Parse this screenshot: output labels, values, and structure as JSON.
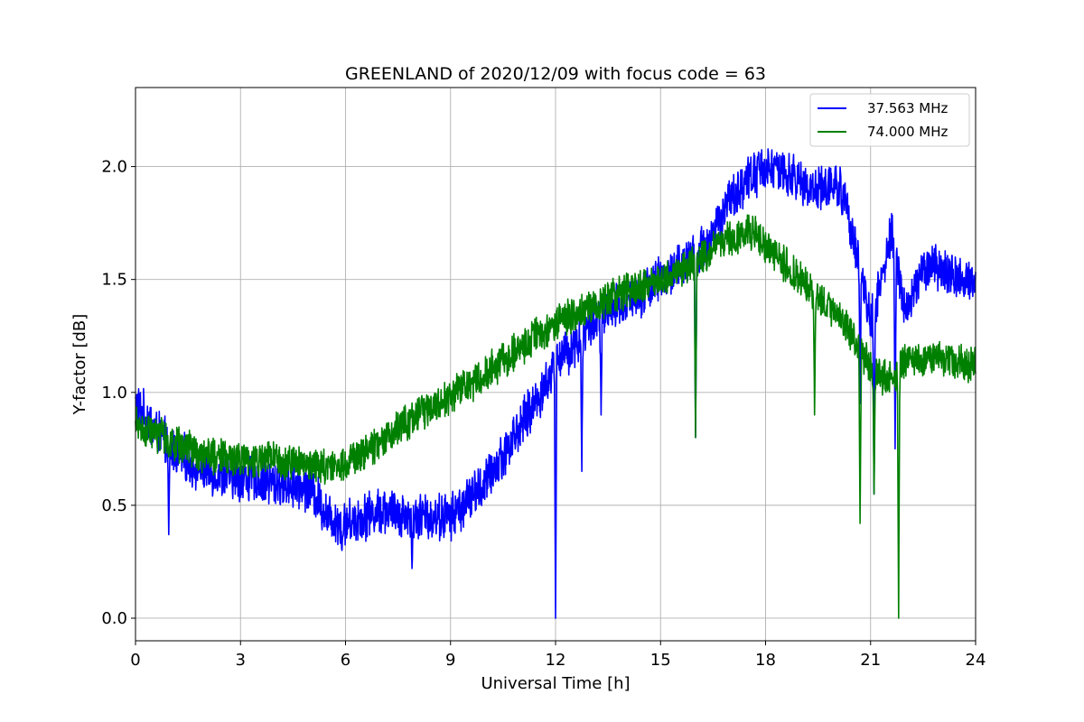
{
  "chart_data": {
    "type": "line",
    "title": "GREENLAND of 2020/12/09 with focus code = 63",
    "xlabel": "Universal Time [h]",
    "ylabel": "Y-factor [dB]",
    "xlim": [
      0,
      24
    ],
    "ylim": [
      -0.1,
      2.35
    ],
    "xticks": [
      0,
      3,
      6,
      9,
      12,
      15,
      18,
      21,
      24
    ],
    "yticks": [
      0.0,
      0.5,
      1.0,
      1.5,
      2.0
    ],
    "xtick_labels": [
      "0",
      "3",
      "6",
      "9",
      "12",
      "15",
      "18",
      "21",
      "24"
    ],
    "ytick_labels": [
      "0.0",
      "0.5",
      "1.0",
      "1.5",
      "2.0"
    ],
    "grid": true,
    "legend_position": "top-right",
    "series": [
      {
        "name": "37.563 MHz",
        "color": "#0000ff",
        "noise": 0.09,
        "x": [
          0,
          0.5,
          1,
          2,
          3,
          4,
          5,
          5.5,
          6,
          7,
          8,
          9,
          10,
          11,
          11.8,
          12,
          12.5,
          13,
          14,
          15,
          16,
          16.5,
          17,
          17.5,
          18,
          18.5,
          19,
          19.5,
          20,
          20.3,
          20.7,
          21,
          21.3,
          21.6,
          22,
          22.5,
          23,
          23.5,
          24
        ],
        "y": [
          0.95,
          0.85,
          0.75,
          0.65,
          0.62,
          0.6,
          0.58,
          0.45,
          0.42,
          0.48,
          0.45,
          0.45,
          0.6,
          0.85,
          1.05,
          1.15,
          1.2,
          1.3,
          1.4,
          1.5,
          1.6,
          1.7,
          1.85,
          1.95,
          2.0,
          1.97,
          1.93,
          1.9,
          1.92,
          1.85,
          1.55,
          1.3,
          1.5,
          1.7,
          1.35,
          1.55,
          1.55,
          1.5,
          1.5
        ],
        "dips": [
          [
            0.95,
            0.37
          ],
          [
            5.9,
            0.3
          ],
          [
            7.9,
            0.22
          ],
          [
            12.0,
            0.0
          ],
          [
            12.75,
            0.65
          ],
          [
            13.3,
            0.9
          ],
          [
            16.0,
            0.8
          ],
          [
            20.7,
            0.95
          ],
          [
            21.1,
            0.55
          ],
          [
            21.7,
            0.75
          ]
        ]
      },
      {
        "name": "74.000 MHz",
        "color": "#008000",
        "noise": 0.07,
        "x": [
          0,
          0.5,
          1,
          2,
          3,
          4,
          5,
          5.5,
          6,
          7,
          8,
          9,
          10,
          11,
          12,
          13,
          14,
          15,
          16,
          17,
          17.5,
          18,
          19,
          20,
          20.5,
          21,
          21.5,
          22,
          23,
          24
        ],
        "y": [
          0.85,
          0.82,
          0.78,
          0.72,
          0.7,
          0.7,
          0.68,
          0.66,
          0.68,
          0.78,
          0.9,
          0.98,
          1.08,
          1.2,
          1.3,
          1.38,
          1.45,
          1.5,
          1.58,
          1.68,
          1.72,
          1.65,
          1.5,
          1.35,
          1.25,
          1.1,
          1.05,
          1.15,
          1.15,
          1.12
        ],
        "dips": [
          [
            16.0,
            0.8
          ],
          [
            19.4,
            0.9
          ],
          [
            20.7,
            0.42
          ],
          [
            21.1,
            0.55
          ],
          [
            21.8,
            0.0
          ]
        ]
      }
    ]
  }
}
